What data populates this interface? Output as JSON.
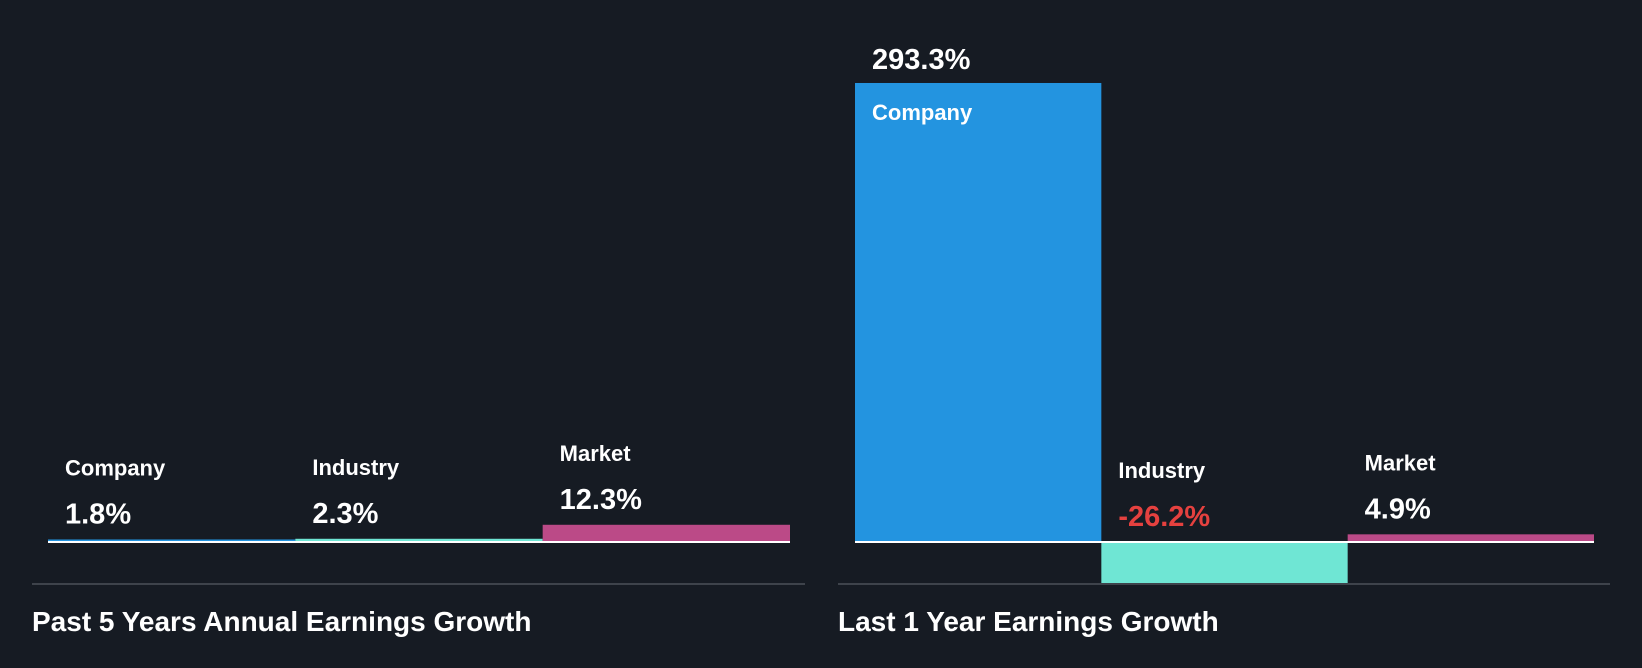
{
  "colors": {
    "company": "#2394e0",
    "industry": "#6fe6d4",
    "market": "#bb4a87",
    "negative_text": "#e5413f",
    "text": "#ffffff",
    "baseline": "#ffffff"
  },
  "chart_data": [
    {
      "type": "bar",
      "title": "Past 5 Years Annual Earnings Growth",
      "categories": [
        "Company",
        "Industry",
        "Market"
      ],
      "values": [
        1.8,
        2.3,
        12.3
      ],
      "value_labels": [
        "1.8%",
        "2.3%",
        "12.3%"
      ],
      "unit": "%"
    },
    {
      "type": "bar",
      "title": "Last 1 Year Earnings Growth",
      "categories": [
        "Company",
        "Industry",
        "Market"
      ],
      "values": [
        293.3,
        -26.2,
        4.9
      ],
      "value_labels": [
        "293.3%",
        "-26.2%",
        "4.9%"
      ],
      "unit": "%"
    }
  ]
}
